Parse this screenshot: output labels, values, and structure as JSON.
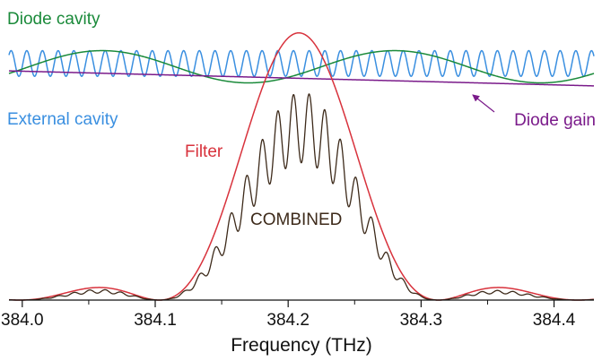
{
  "chart_data": {
    "type": "line",
    "title": "",
    "xlabel": "Frequency (THz)",
    "ylabel": "",
    "xlim": [
      383.99,
      384.43
    ],
    "ylim": [
      0,
      1
    ],
    "grid": false,
    "x_ticks": [
      384.0,
      384.1,
      384.2,
      384.3,
      384.4
    ],
    "x_tick_labels": [
      "384.0",
      "384.1",
      "384.2",
      "384.3",
      "384.4"
    ],
    "series": [
      {
        "name": "Diode cavity",
        "color": "#1a8a3a",
        "kind": "sinusoid",
        "period_thz": 0.22,
        "peaks_thz": [
          384.06,
          384.28
        ],
        "y_mean": 0.854,
        "amplitude": 0.059
      },
      {
        "name": "External cavity",
        "color": "#3a8fe0",
        "kind": "sinusoid",
        "period_thz": 0.0118,
        "peak_thz": 384.204,
        "y_mean": 0.866,
        "amplitude": 0.047
      },
      {
        "name": "Diode gain",
        "color": "#7a1a8a",
        "kind": "linear",
        "points": [
          [
            383.99,
            0.839
          ],
          [
            384.43,
            0.784
          ]
        ]
      },
      {
        "name": "Filter",
        "color": "#d8323c",
        "kind": "sinc2",
        "center_thz": 384.208,
        "first_zero_offset_thz": 0.105,
        "peak": 0.978
      },
      {
        "name": "COMBINED",
        "color": "#3d2a1a",
        "kind": "product",
        "peak": 0.82
      }
    ],
    "annotations": [
      {
        "text": "Diode cavity",
        "color": "#1a8a3a"
      },
      {
        "text": "External cavity",
        "color": "#3a8fe0"
      },
      {
        "text": "Diode gain",
        "color": "#7a1a8a"
      },
      {
        "text": "Filter",
        "color": "#d8323c"
      },
      {
        "text": "COMBINED",
        "color": "#3d2a1a"
      }
    ]
  }
}
